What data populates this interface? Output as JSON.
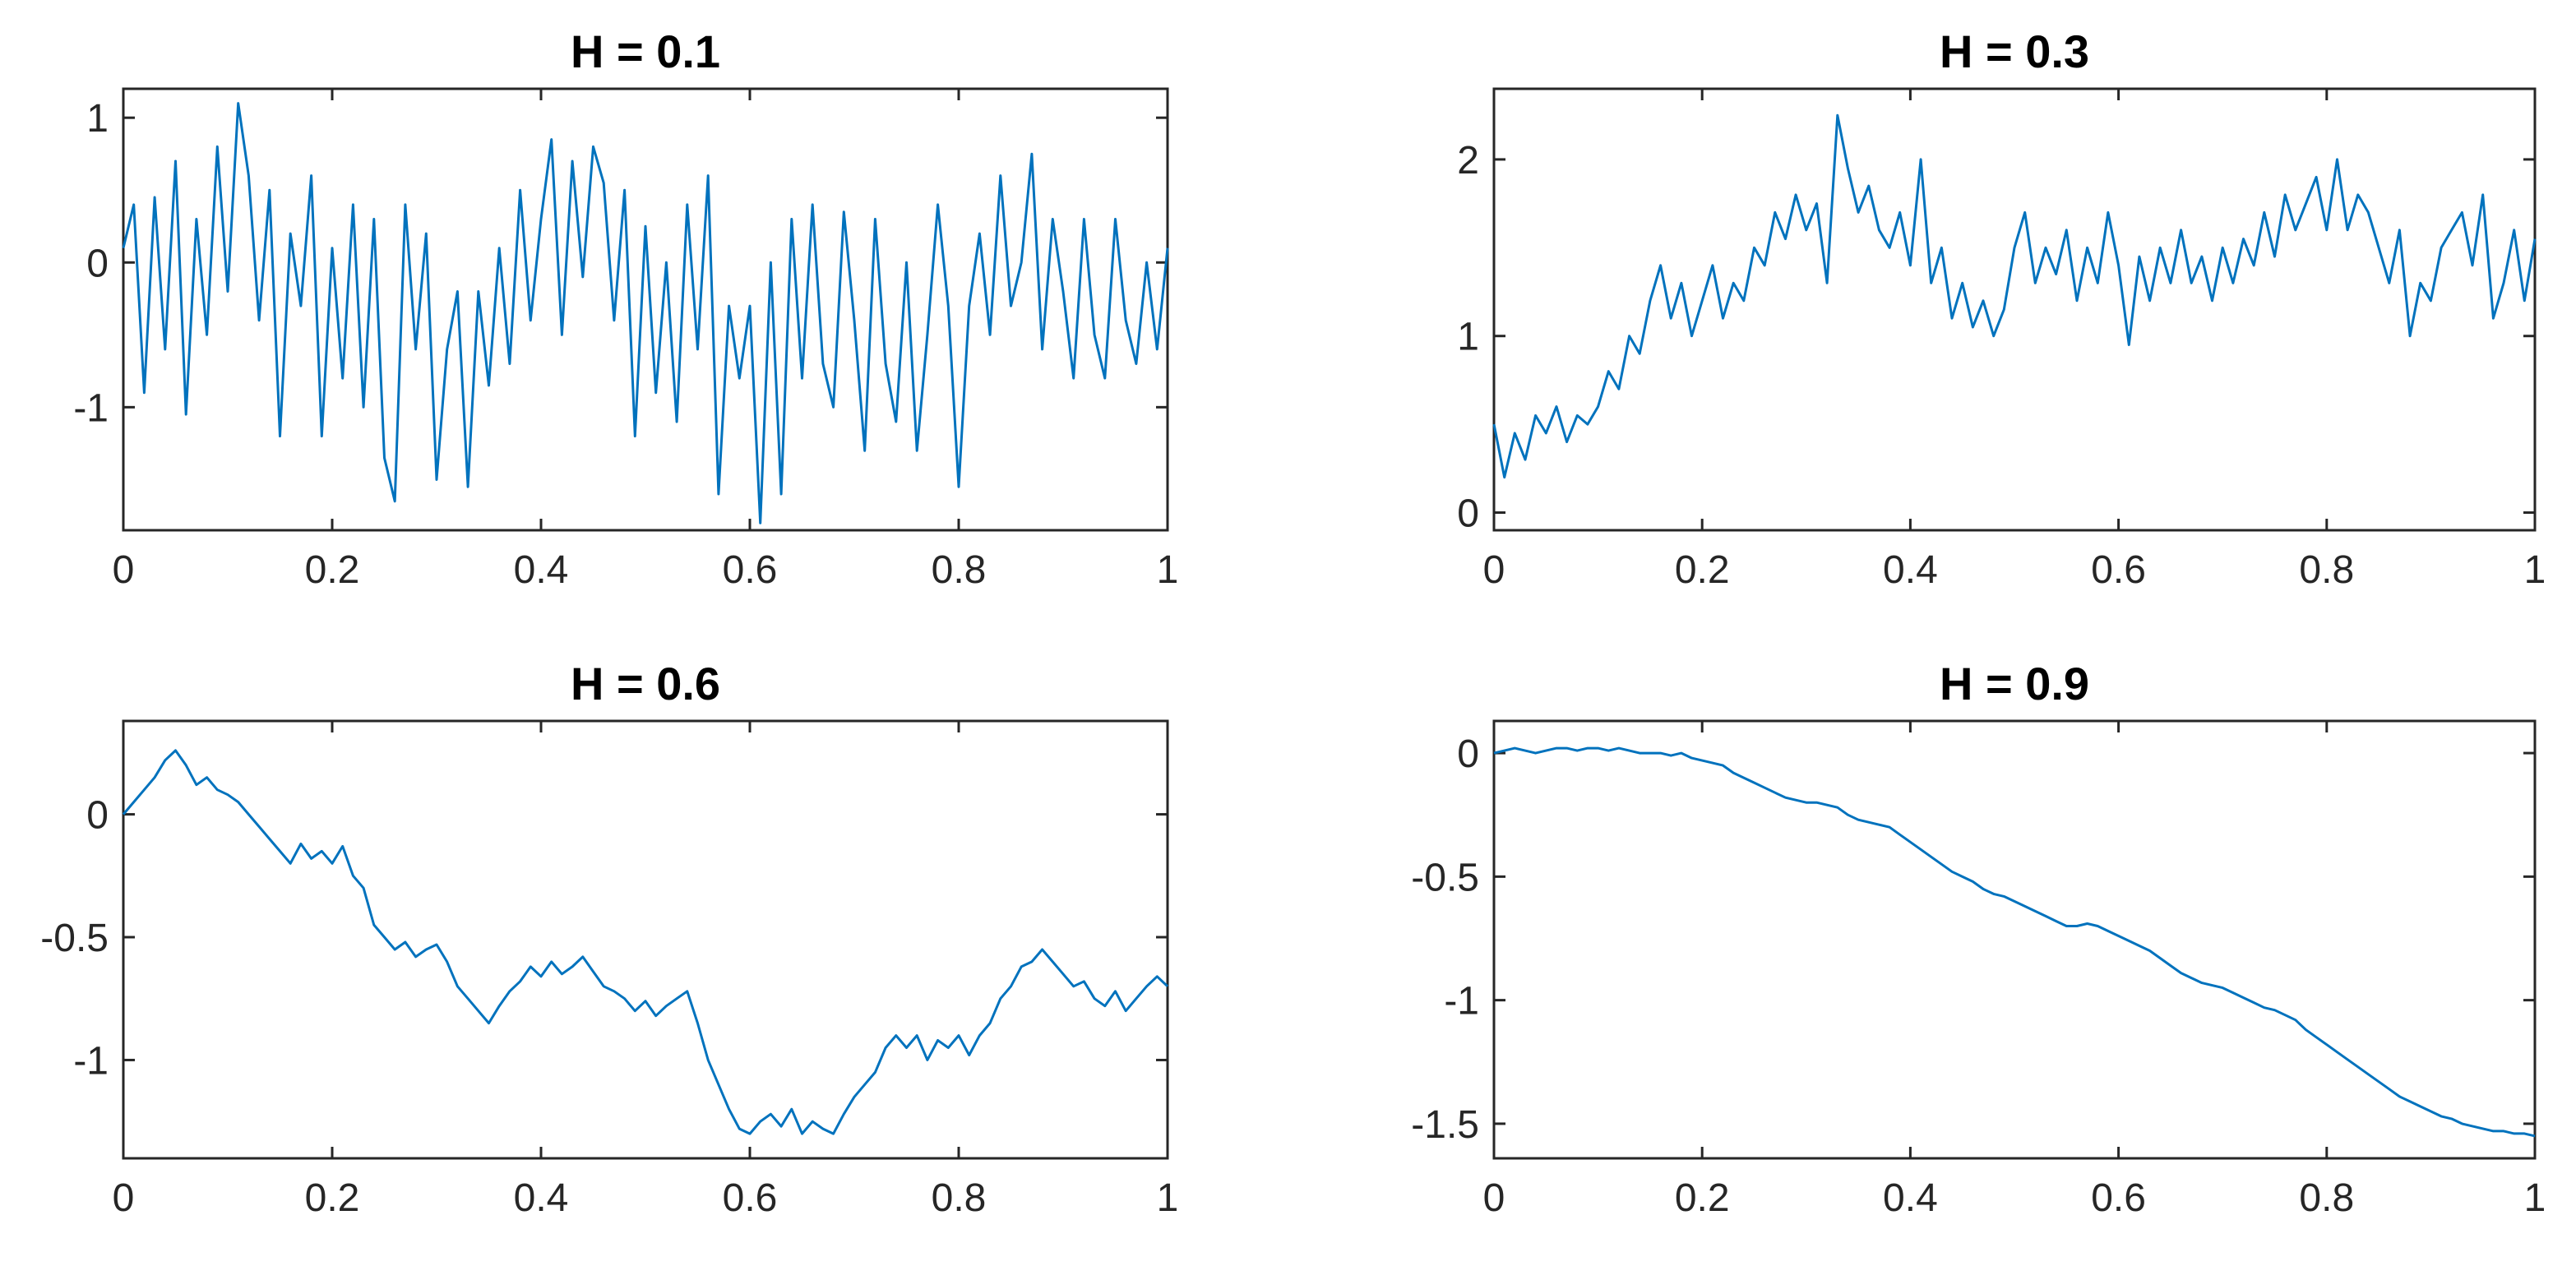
{
  "colors": {
    "series": "#0072bd",
    "axis": "#262626"
  },
  "chart_data": [
    {
      "type": "line",
      "title": "H = 0.1",
      "xlim": [
        0,
        1
      ],
      "ylim": [
        -1.85,
        1.2
      ],
      "xticks": [
        0,
        0.2,
        0.4,
        0.6,
        0.8,
        1
      ],
      "yticks": [
        -1,
        0,
        1
      ],
      "xtick_labels": [
        "0",
        "0.2",
        "0.4",
        "0.6",
        "0.8",
        "1"
      ],
      "ytick_labels": [
        "-1",
        "0",
        "1"
      ],
      "series": [
        {
          "x": [
            0,
            0.01,
            0.02,
            0.03,
            0.04,
            0.05,
            0.06,
            0.07,
            0.08,
            0.09,
            0.1,
            0.11,
            0.12,
            0.13,
            0.14,
            0.15,
            0.16,
            0.17,
            0.18,
            0.19,
            0.2,
            0.21,
            0.22,
            0.23,
            0.24,
            0.25,
            0.26,
            0.27,
            0.28,
            0.29,
            0.3,
            0.31,
            0.32,
            0.33,
            0.34,
            0.35,
            0.36,
            0.37,
            0.38,
            0.39,
            0.4,
            0.41,
            0.42,
            0.43,
            0.44,
            0.45,
            0.46,
            0.47,
            0.48,
            0.49,
            0.5,
            0.51,
            0.52,
            0.53,
            0.54,
            0.55,
            0.56,
            0.57,
            0.58,
            0.59,
            0.6,
            0.61,
            0.62,
            0.63,
            0.64,
            0.65,
            0.66,
            0.67,
            0.68,
            0.69,
            0.7,
            0.71,
            0.72,
            0.73,
            0.74,
            0.75,
            0.76,
            0.77,
            0.78,
            0.79,
            0.8,
            0.81,
            0.82,
            0.83,
            0.84,
            0.85,
            0.86,
            0.87,
            0.88,
            0.89,
            0.9,
            0.91,
            0.92,
            0.93,
            0.94,
            0.95,
            0.96,
            0.97,
            0.98,
            0.99,
            1
          ],
          "y": [
            0.1,
            0.4,
            -0.9,
            0.45,
            -0.6,
            0.7,
            -1.05,
            0.3,
            -0.5,
            0.8,
            -0.2,
            1.1,
            0.6,
            -0.4,
            0.5,
            -1.2,
            0.2,
            -0.3,
            0.6,
            -1.2,
            0.1,
            -0.8,
            0.4,
            -1.0,
            0.3,
            -1.35,
            -1.65,
            0.4,
            -0.6,
            0.2,
            -1.5,
            -0.6,
            -0.2,
            -1.55,
            -0.2,
            -0.85,
            0.1,
            -0.7,
            0.5,
            -0.4,
            0.3,
            0.85,
            -0.5,
            0.7,
            -0.1,
            0.8,
            0.55,
            -0.4,
            0.5,
            -1.2,
            0.25,
            -0.9,
            0.0,
            -1.1,
            0.4,
            -0.6,
            0.6,
            -1.6,
            -0.3,
            -0.8,
            -0.3,
            -1.8,
            0.0,
            -1.6,
            0.3,
            -0.8,
            0.4,
            -0.7,
            -1.0,
            0.35,
            -0.4,
            -1.3,
            0.3,
            -0.7,
            -1.1,
            0.0,
            -1.3,
            -0.5,
            0.4,
            -0.3,
            -1.55,
            -0.3,
            0.2,
            -0.5,
            0.6,
            -0.3,
            0.0,
            0.75,
            -0.6,
            0.3,
            -0.2,
            -0.8,
            0.3,
            -0.5,
            -0.8,
            0.3,
            -0.4,
            -0.7,
            0.0,
            -0.6,
            0.1
          ]
        }
      ]
    },
    {
      "type": "line",
      "title": "H = 0.3",
      "xlim": [
        0,
        1
      ],
      "ylim": [
        -0.1,
        2.4
      ],
      "xticks": [
        0,
        0.2,
        0.4,
        0.6,
        0.8,
        1
      ],
      "yticks": [
        0,
        1,
        2
      ],
      "xtick_labels": [
        "0",
        "0.2",
        "0.4",
        "0.6",
        "0.8",
        "1"
      ],
      "ytick_labels": [
        "0",
        "1",
        "2"
      ],
      "series": [
        {
          "x": [
            0,
            0.01,
            0.02,
            0.03,
            0.04,
            0.05,
            0.06,
            0.07,
            0.08,
            0.09,
            0.1,
            0.11,
            0.12,
            0.13,
            0.14,
            0.15,
            0.16,
            0.17,
            0.18,
            0.19,
            0.2,
            0.21,
            0.22,
            0.23,
            0.24,
            0.25,
            0.26,
            0.27,
            0.28,
            0.29,
            0.3,
            0.31,
            0.32,
            0.33,
            0.34,
            0.35,
            0.36,
            0.37,
            0.38,
            0.39,
            0.4,
            0.41,
            0.42,
            0.43,
            0.44,
            0.45,
            0.46,
            0.47,
            0.48,
            0.49,
            0.5,
            0.51,
            0.52,
            0.53,
            0.54,
            0.55,
            0.56,
            0.57,
            0.58,
            0.59,
            0.6,
            0.61,
            0.62,
            0.63,
            0.64,
            0.65,
            0.66,
            0.67,
            0.68,
            0.69,
            0.7,
            0.71,
            0.72,
            0.73,
            0.74,
            0.75,
            0.76,
            0.77,
            0.78,
            0.79,
            0.8,
            0.81,
            0.82,
            0.83,
            0.84,
            0.85,
            0.86,
            0.87,
            0.88,
            0.89,
            0.9,
            0.91,
            0.92,
            0.93,
            0.94,
            0.95,
            0.96,
            0.97,
            0.98,
            0.99,
            1
          ],
          "y": [
            0.5,
            0.2,
            0.45,
            0.3,
            0.55,
            0.45,
            0.6,
            0.4,
            0.55,
            0.5,
            0.6,
            0.8,
            0.7,
            1.0,
            0.9,
            1.2,
            1.4,
            1.1,
            1.3,
            1.0,
            1.2,
            1.4,
            1.1,
            1.3,
            1.2,
            1.5,
            1.4,
            1.7,
            1.55,
            1.8,
            1.6,
            1.75,
            1.3,
            2.25,
            1.95,
            1.7,
            1.85,
            1.6,
            1.5,
            1.7,
            1.4,
            2.0,
            1.3,
            1.5,
            1.1,
            1.3,
            1.05,
            1.2,
            1.0,
            1.15,
            1.5,
            1.7,
            1.3,
            1.5,
            1.35,
            1.6,
            1.2,
            1.5,
            1.3,
            1.7,
            1.4,
            0.95,
            1.45,
            1.2,
            1.5,
            1.3,
            1.6,
            1.3,
            1.45,
            1.2,
            1.5,
            1.3,
            1.55,
            1.4,
            1.7,
            1.45,
            1.8,
            1.6,
            1.75,
            1.9,
            1.6,
            2.0,
            1.6,
            1.8,
            1.7,
            1.5,
            1.3,
            1.6,
            1.0,
            1.3,
            1.2,
            1.5,
            1.6,
            1.7,
            1.4,
            1.8,
            1.1,
            1.3,
            1.6,
            1.2,
            1.55
          ]
        }
      ]
    },
    {
      "type": "line",
      "title": "H = 0.6",
      "xlim": [
        0,
        1
      ],
      "ylim": [
        -1.4,
        0.38
      ],
      "xticks": [
        0,
        0.2,
        0.4,
        0.6,
        0.8,
        1
      ],
      "yticks": [
        -1,
        -0.5,
        0
      ],
      "xtick_labels": [
        "0",
        "0.2",
        "0.4",
        "0.6",
        "0.8",
        "1"
      ],
      "ytick_labels": [
        "-1",
        "-0.5",
        "0"
      ],
      "series": [
        {
          "x": [
            0,
            0.01,
            0.02,
            0.03,
            0.04,
            0.05,
            0.06,
            0.07,
            0.08,
            0.09,
            0.1,
            0.11,
            0.12,
            0.13,
            0.14,
            0.15,
            0.16,
            0.17,
            0.18,
            0.19,
            0.2,
            0.21,
            0.22,
            0.23,
            0.24,
            0.25,
            0.26,
            0.27,
            0.28,
            0.29,
            0.3,
            0.31,
            0.32,
            0.33,
            0.34,
            0.35,
            0.36,
            0.37,
            0.38,
            0.39,
            0.4,
            0.41,
            0.42,
            0.43,
            0.44,
            0.45,
            0.46,
            0.47,
            0.48,
            0.49,
            0.5,
            0.51,
            0.52,
            0.53,
            0.54,
            0.55,
            0.56,
            0.57,
            0.58,
            0.59,
            0.6,
            0.61,
            0.62,
            0.63,
            0.64,
            0.65,
            0.66,
            0.67,
            0.68,
            0.69,
            0.7,
            0.71,
            0.72,
            0.73,
            0.74,
            0.75,
            0.76,
            0.77,
            0.78,
            0.79,
            0.8,
            0.81,
            0.82,
            0.83,
            0.84,
            0.85,
            0.86,
            0.87,
            0.88,
            0.89,
            0.9,
            0.91,
            0.92,
            0.93,
            0.94,
            0.95,
            0.96,
            0.97,
            0.98,
            0.99,
            1
          ],
          "y": [
            0.0,
            0.05,
            0.1,
            0.15,
            0.22,
            0.26,
            0.2,
            0.12,
            0.15,
            0.1,
            0.08,
            0.05,
            0.0,
            -0.05,
            -0.1,
            -0.15,
            -0.2,
            -0.12,
            -0.18,
            -0.15,
            -0.2,
            -0.13,
            -0.25,
            -0.3,
            -0.45,
            -0.5,
            -0.55,
            -0.52,
            -0.58,
            -0.55,
            -0.53,
            -0.6,
            -0.7,
            -0.75,
            -0.8,
            -0.85,
            -0.78,
            -0.72,
            -0.68,
            -0.62,
            -0.66,
            -0.6,
            -0.65,
            -0.62,
            -0.58,
            -0.64,
            -0.7,
            -0.72,
            -0.75,
            -0.8,
            -0.76,
            -0.82,
            -0.78,
            -0.75,
            -0.72,
            -0.85,
            -1.0,
            -1.1,
            -1.2,
            -1.28,
            -1.3,
            -1.25,
            -1.22,
            -1.27,
            -1.2,
            -1.3,
            -1.25,
            -1.28,
            -1.3,
            -1.22,
            -1.15,
            -1.1,
            -1.05,
            -0.95,
            -0.9,
            -0.95,
            -0.9,
            -1.0,
            -0.92,
            -0.95,
            -0.9,
            -0.98,
            -0.9,
            -0.85,
            -0.75,
            -0.7,
            -0.62,
            -0.6,
            -0.55,
            -0.6,
            -0.65,
            -0.7,
            -0.68,
            -0.75,
            -0.78,
            -0.72,
            -0.8,
            -0.75,
            -0.7,
            -0.66,
            -0.7
          ]
        }
      ]
    },
    {
      "type": "line",
      "title": "H = 0.9",
      "xlim": [
        0,
        1
      ],
      "ylim": [
        -1.64,
        0.13
      ],
      "xticks": [
        0,
        0.2,
        0.4,
        0.6,
        0.8,
        1
      ],
      "yticks": [
        -1.5,
        -1,
        -0.5,
        0
      ],
      "xtick_labels": [
        "0",
        "0.2",
        "0.4",
        "0.6",
        "0.8",
        "1"
      ],
      "ytick_labels": [
        "-1.5",
        "-1",
        "-0.5",
        "0"
      ],
      "series": [
        {
          "x": [
            0,
            0.01,
            0.02,
            0.03,
            0.04,
            0.05,
            0.06,
            0.07,
            0.08,
            0.09,
            0.1,
            0.11,
            0.12,
            0.13,
            0.14,
            0.15,
            0.16,
            0.17,
            0.18,
            0.19,
            0.2,
            0.21,
            0.22,
            0.23,
            0.24,
            0.25,
            0.26,
            0.27,
            0.28,
            0.29,
            0.3,
            0.31,
            0.32,
            0.33,
            0.34,
            0.35,
            0.36,
            0.37,
            0.38,
            0.39,
            0.4,
            0.41,
            0.42,
            0.43,
            0.44,
            0.45,
            0.46,
            0.47,
            0.48,
            0.49,
            0.5,
            0.51,
            0.52,
            0.53,
            0.54,
            0.55,
            0.56,
            0.57,
            0.58,
            0.59,
            0.6,
            0.61,
            0.62,
            0.63,
            0.64,
            0.65,
            0.66,
            0.67,
            0.68,
            0.69,
            0.7,
            0.71,
            0.72,
            0.73,
            0.74,
            0.75,
            0.76,
            0.77,
            0.78,
            0.79,
            0.8,
            0.81,
            0.82,
            0.83,
            0.84,
            0.85,
            0.86,
            0.87,
            0.88,
            0.89,
            0.9,
            0.91,
            0.92,
            0.93,
            0.94,
            0.95,
            0.96,
            0.97,
            0.98,
            0.99,
            1
          ],
          "y": [
            0.0,
            0.01,
            0.02,
            0.01,
            0.0,
            0.01,
            0.02,
            0.02,
            0.01,
            0.02,
            0.02,
            0.01,
            0.02,
            0.01,
            0.0,
            0.0,
            0.0,
            -0.01,
            0.0,
            -0.02,
            -0.03,
            -0.04,
            -0.05,
            -0.08,
            -0.1,
            -0.12,
            -0.14,
            -0.16,
            -0.18,
            -0.19,
            -0.2,
            -0.2,
            -0.21,
            -0.22,
            -0.25,
            -0.27,
            -0.28,
            -0.29,
            -0.3,
            -0.33,
            -0.36,
            -0.39,
            -0.42,
            -0.45,
            -0.48,
            -0.5,
            -0.52,
            -0.55,
            -0.57,
            -0.58,
            -0.6,
            -0.62,
            -0.64,
            -0.66,
            -0.68,
            -0.7,
            -0.7,
            -0.69,
            -0.7,
            -0.72,
            -0.74,
            -0.76,
            -0.78,
            -0.8,
            -0.83,
            -0.86,
            -0.89,
            -0.91,
            -0.93,
            -0.94,
            -0.95,
            -0.97,
            -0.99,
            -1.01,
            -1.03,
            -1.04,
            -1.06,
            -1.08,
            -1.12,
            -1.15,
            -1.18,
            -1.21,
            -1.24,
            -1.27,
            -1.3,
            -1.33,
            -1.36,
            -1.39,
            -1.41,
            -1.43,
            -1.45,
            -1.47,
            -1.48,
            -1.5,
            -1.51,
            -1.52,
            -1.53,
            -1.53,
            -1.54,
            -1.54,
            -1.55
          ]
        }
      ]
    }
  ]
}
